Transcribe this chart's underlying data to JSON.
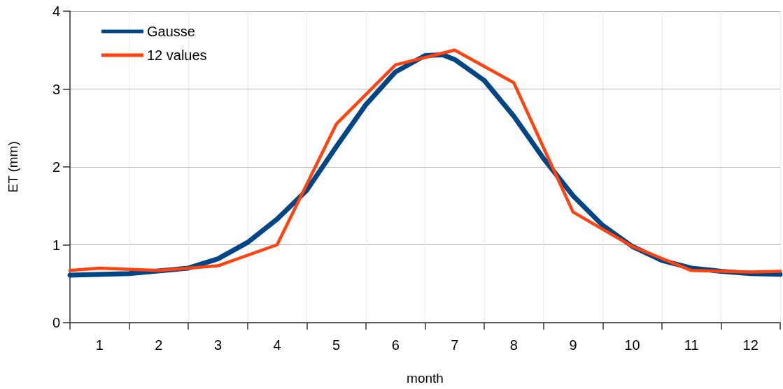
{
  "chart_data": {
    "type": "line",
    "xlabel": "month",
    "ylabel": "ET (mm)",
    "xlim": [
      0,
      12
    ],
    "xticks": [
      {
        "value": 0,
        "label": null
      },
      {
        "value": 0.5,
        "label": "1"
      },
      {
        "value": 1,
        "label": null
      },
      {
        "value": 1.5,
        "label": "2"
      },
      {
        "value": 2,
        "label": null
      },
      {
        "value": 2.5,
        "label": "3"
      },
      {
        "value": 3,
        "label": null
      },
      {
        "value": 3.5,
        "label": "4"
      },
      {
        "value": 4,
        "label": null
      },
      {
        "value": 4.5,
        "label": "5"
      },
      {
        "value": 5,
        "label": null
      },
      {
        "value": 5.5,
        "label": "6"
      },
      {
        "value": 6,
        "label": null
      },
      {
        "value": 6.5,
        "label": "7"
      },
      {
        "value": 7,
        "label": null
      },
      {
        "value": 7.5,
        "label": "8"
      },
      {
        "value": 8,
        "label": null
      },
      {
        "value": 8.5,
        "label": "9"
      },
      {
        "value": 9,
        "label": null
      },
      {
        "value": 9.5,
        "label": "10"
      },
      {
        "value": 10,
        "label": null
      },
      {
        "value": 10.5,
        "label": "11"
      },
      {
        "value": 11,
        "label": null
      },
      {
        "value": 11.5,
        "label": "12"
      },
      {
        "value": 12,
        "label": null
      }
    ],
    "ylim": [
      0,
      4
    ],
    "yticks": [
      0,
      1,
      2,
      3,
      4
    ],
    "grid": true,
    "legend": "top left",
    "marker": "none",
    "line_style": "solid",
    "series": [
      {
        "name": "Gausse",
        "color": "#004586",
        "x": [
          0,
          1,
          2,
          2.5,
          3,
          3.5,
          4,
          4.5,
          5,
          5.5,
          6,
          6.3,
          6.5,
          7,
          7.5,
          8,
          8.5,
          9,
          9.5,
          10,
          10.5,
          11,
          11.5,
          12
        ],
        "values": [
          0.61,
          0.63,
          0.7,
          0.82,
          1.03,
          1.33,
          1.7,
          2.26,
          2.8,
          3.22,
          3.43,
          3.44,
          3.38,
          3.11,
          2.65,
          2.11,
          1.63,
          1.25,
          0.98,
          0.8,
          0.7,
          0.66,
          0.63,
          0.62
        ]
      },
      {
        "name": "12 values",
        "color": "#ff420e",
        "x": [
          0,
          0.5,
          1.5,
          2.5,
          3.5,
          4.5,
          5.5,
          6.5,
          7.5,
          8.5,
          9.5,
          10.5,
          11.5,
          12
        ],
        "values": [
          0.67,
          0.7,
          0.67,
          0.73,
          1.0,
          2.55,
          3.31,
          3.5,
          3.08,
          1.42,
          0.98,
          0.67,
          0.65,
          0.66
        ]
      }
    ]
  }
}
